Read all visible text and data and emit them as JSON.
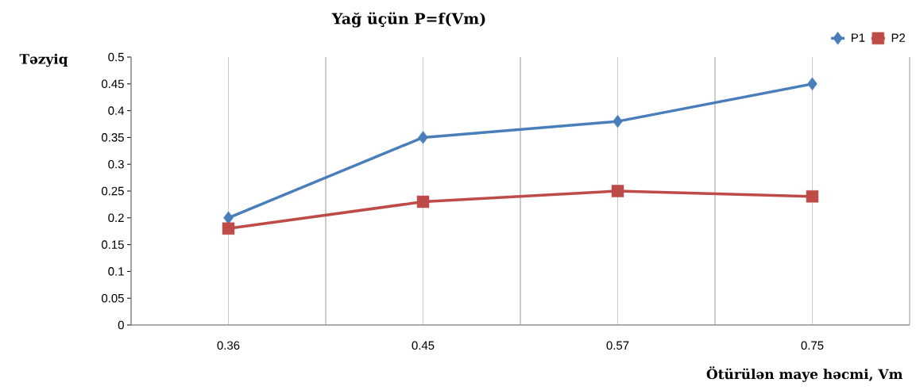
{
  "chart_data": {
    "type": "line",
    "title": "Yağ üçün P=f(Vm)",
    "xlabel": "Ötürülən maye həcmi, Vm",
    "ylabel": "Təzyiq",
    "categories": [
      "0.36",
      "0.45",
      "0.57",
      "0.75"
    ],
    "series": [
      {
        "name": "P1",
        "color": "#4a7ebb",
        "marker": "diamond",
        "values": [
          0.2,
          0.35,
          0.38,
          0.45
        ]
      },
      {
        "name": "P2",
        "color": "#be4b48",
        "marker": "square",
        "values": [
          0.18,
          0.23,
          0.25,
          0.24
        ]
      }
    ],
    "ylim": [
      0,
      0.5
    ],
    "yticks": [
      0,
      0.05,
      0.1,
      0.15,
      0.2,
      0.25,
      0.3,
      0.35,
      0.4,
      0.45,
      0.5
    ],
    "grid": "x",
    "legend": "top right"
  }
}
